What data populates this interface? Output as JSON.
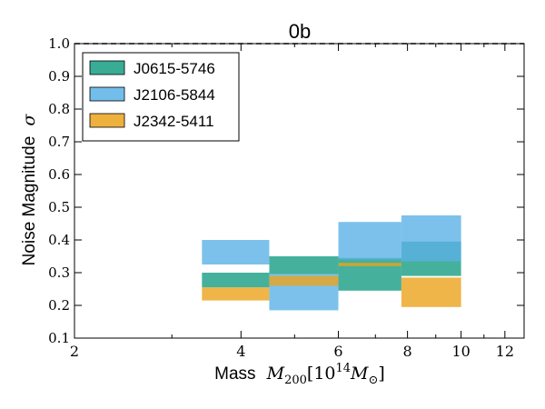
{
  "chart_data": {
    "type": "bar",
    "title": "0b",
    "xlabel_text": "Mass",
    "xlabel_math": {
      "M": "M",
      "sub": "200",
      "bracket_open": "[",
      "ten": "10",
      "exp": "14",
      "msun": "M",
      "sun_sub": "⊙",
      "bracket_close": "]"
    },
    "ylabel_text": "Noise Magnitude",
    "ylabel_math": "σ",
    "xscale": "log",
    "xlim": [
      2,
      13
    ],
    "ylim": [
      0.1,
      1.0
    ],
    "x_ticks": [
      2,
      4,
      6,
      8,
      10,
      12
    ],
    "y_ticks": [
      0.1,
      0.2,
      0.3,
      0.4,
      0.5,
      0.6,
      0.7,
      0.8,
      0.9,
      1.0
    ],
    "y_tick_labels": [
      "0.1",
      "0.2",
      "0.3",
      "0.4",
      "0.5",
      "0.6",
      "0.7",
      "0.8",
      "0.9",
      "1.0"
    ],
    "reference_line_y": 1.0,
    "legend_position": "top-left",
    "bins": [
      [
        3.4,
        4.5
      ],
      [
        4.5,
        6.0
      ],
      [
        6.0,
        7.8
      ],
      [
        7.8,
        10.0
      ]
    ],
    "series": [
      {
        "name": "J0615-5746",
        "color": "#169e83",
        "bands": [
          [
            0.255,
            0.3
          ],
          [
            0.295,
            0.35
          ],
          [
            0.245,
            0.345
          ],
          [
            0.29,
            0.395
          ]
        ]
      },
      {
        "name": "J2106-5844",
        "color": "#5bb2e6",
        "bands": [
          [
            0.325,
            0.4
          ],
          [
            0.185,
            0.295
          ],
          [
            0.34,
            0.455
          ],
          [
            0.335,
            0.475
          ]
        ]
      },
      {
        "name": "J2342-5411",
        "color": "#eba31c",
        "bands": [
          [
            0.215,
            0.255
          ],
          [
            0.26,
            0.29
          ],
          [
            0.32,
            0.33
          ],
          [
            0.195,
            0.285
          ]
        ]
      }
    ]
  }
}
